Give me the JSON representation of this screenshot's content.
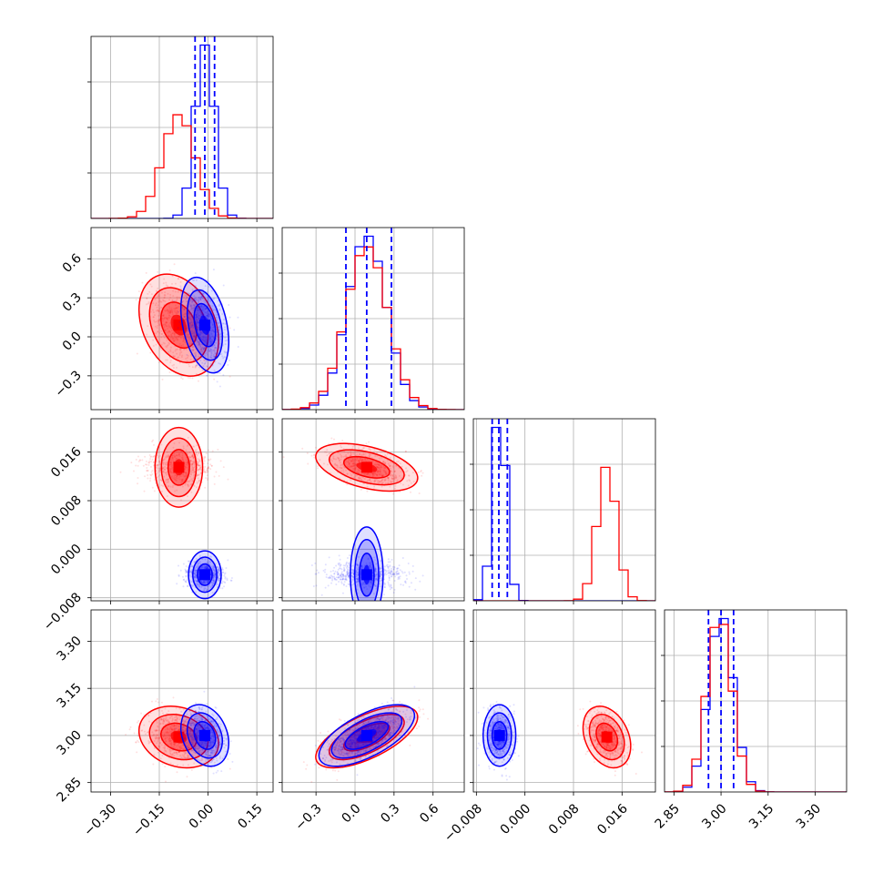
{
  "chart_data": {
    "type": "corner",
    "title": "",
    "grid": true,
    "colors": {
      "series_a": "#ff0000",
      "series_b": "#0000ff"
    },
    "series": [
      {
        "color": "#ff0000",
        "params": [
          {
            "median": -0.09,
            "sigma": 0.05
          },
          {
            "median": 0.09,
            "sigma": 0.16
          },
          {
            "median": 0.0135,
            "sigma": 0.0016
          },
          {
            "median": 2.995,
            "sigma": 0.04
          }
        ]
      },
      {
        "color": "#0000ff",
        "params": [
          {
            "median": -0.01,
            "sigma": 0.03
          },
          {
            "median": 0.09,
            "sigma": 0.15
          },
          {
            "median": -0.0042,
            "sigma": 0.0011
          },
          {
            "median": 3.0,
            "sigma": 0.04
          }
        ]
      }
    ],
    "quantile_lines": {
      "color": "#0000ff",
      "style": "dashed",
      "values": [
        [
          -0.04,
          -0.01,
          0.02
        ],
        [
          -0.07,
          0.09,
          0.28
        ],
        [
          -0.0054,
          -0.0043,
          -0.0029
        ],
        [
          2.96,
          3.0,
          3.04
        ]
      ]
    },
    "axes": [
      {
        "range": [
          -0.36,
          0.2
        ],
        "ticks": [
          -0.3,
          -0.15,
          0.0,
          0.15
        ],
        "tick_labels": [
          "−0.30",
          "−0.15",
          "0.00",
          "0.15"
        ]
      },
      {
        "range": [
          -0.56,
          0.84
        ],
        "ticks": [
          -0.3,
          0.0,
          0.3,
          0.6
        ],
        "tick_labels": [
          "−0.3",
          "0.0",
          "0.3",
          "0.6"
        ]
      },
      {
        "range": [
          -0.0085,
          0.0215
        ],
        "ticks": [
          -0.008,
          0.0,
          0.008,
          0.016
        ],
        "tick_labels": [
          "−0.008",
          "0.000",
          "0.008",
          "0.016"
        ]
      },
      {
        "range": [
          2.82,
          3.4
        ],
        "ticks": [
          2.85,
          3.0,
          3.15,
          3.3
        ],
        "tick_labels": [
          "2.85",
          "3.00",
          "3.15",
          "3.30"
        ]
      }
    ],
    "y_axes_visible": [
      false,
      true,
      true,
      true
    ]
  }
}
